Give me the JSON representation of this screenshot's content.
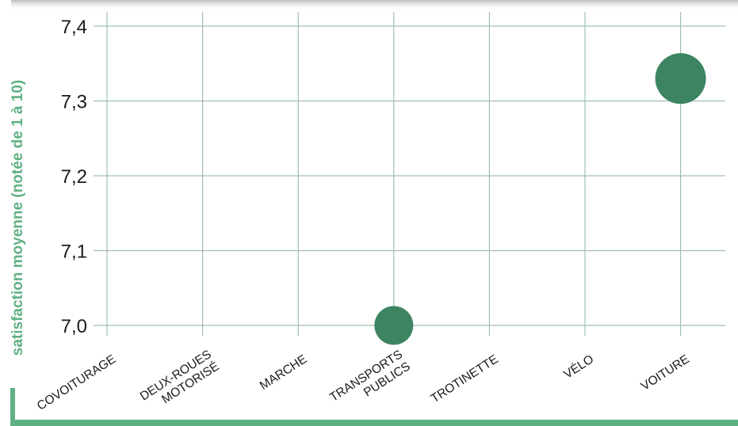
{
  "chart_data": {
    "type": "scatter",
    "title": "",
    "xlabel": "",
    "ylabel": "satisfaction moyenne (notée de 1 à 10)",
    "categories": [
      [
        "COVOITURAGE"
      ],
      [
        "DEUX-ROUES",
        "MOTORISÉ"
      ],
      [
        "MARCHE"
      ],
      [
        "TRANSPORTS",
        "PUBLICS"
      ],
      [
        "TROTINETTE"
      ],
      [
        "VÉLO"
      ],
      [
        "VOITURE"
      ]
    ],
    "yticks": [
      "7,0",
      "7,1",
      "7,2",
      "7,3",
      "7,4"
    ],
    "ytick_values": [
      7.0,
      7.1,
      7.2,
      7.3,
      7.4
    ],
    "ylim": [
      7.0,
      7.4
    ],
    "grid": true,
    "points": [
      {
        "category_index": 3,
        "value": 7.0
      },
      {
        "category_index": 6,
        "value": 7.33
      }
    ],
    "colors": {
      "point": "#3d8462",
      "grid": "#9fc0ad",
      "accent": "#5fb083",
      "ylabel": "#5fb083",
      "text": "#1a1a1a"
    }
  }
}
